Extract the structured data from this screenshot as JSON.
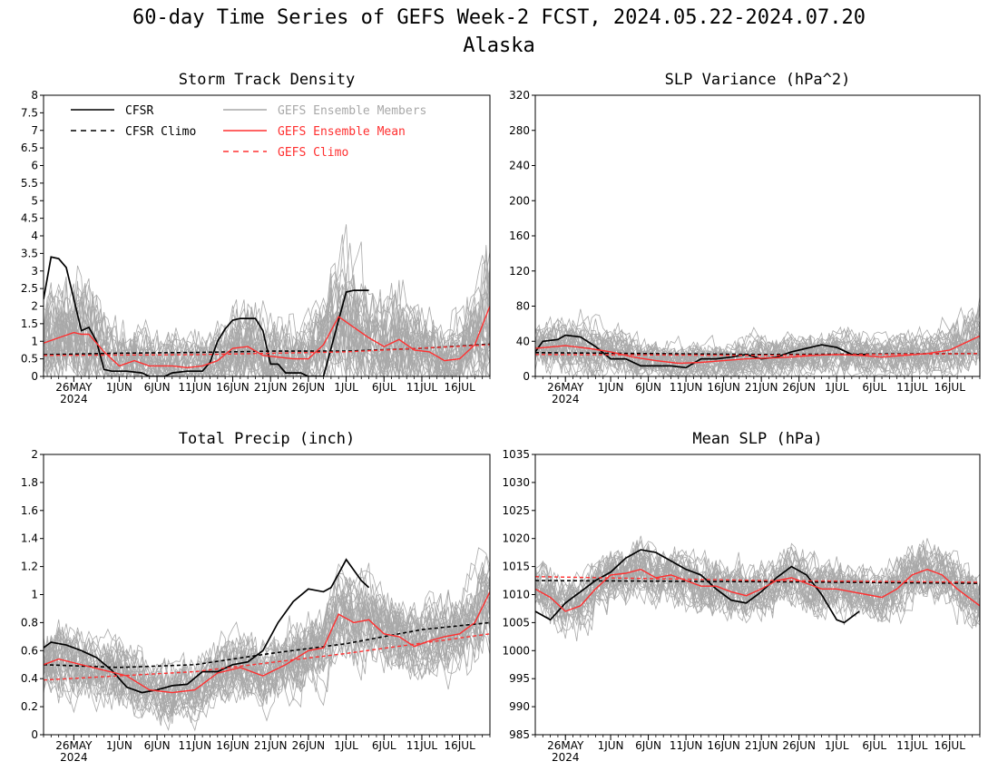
{
  "title": {
    "line1": "60-day Time Series of GEFS Week-2 FCST, 2024.05.22-2024.07.20",
    "line2": "Alaska"
  },
  "colors": {
    "cfsr": "#000000",
    "members": "#a9a9a9",
    "ens_mean": "#ff3030",
    "gefs_climo": "#ff3030"
  },
  "legend": {
    "cfsr": "CFSR",
    "cfsr_climo": "CFSR Climo",
    "members": "GEFS Ensemble Members",
    "ens_mean": "GEFS Ensemble Mean",
    "gefs_climo": "GEFS Climo"
  },
  "x_axis": {
    "start": "2024-05-22",
    "end": "2024-07-20",
    "tick_labels": [
      "26MAY",
      "1JUN",
      "6JUN",
      "11JUN",
      "16JUN",
      "21JUN",
      "26JUN",
      "1JUL",
      "6JUL",
      "11JUL",
      "16JUL"
    ],
    "tick_dates": [
      "2024-05-26",
      "2024-06-01",
      "2024-06-06",
      "2024-06-11",
      "2024-06-16",
      "2024-06-21",
      "2024-06-26",
      "2024-07-01",
      "2024-07-06",
      "2024-07-11",
      "2024-07-16"
    ],
    "year_label": "2024"
  },
  "chart_data": [
    {
      "type": "line",
      "title": "Storm Track Density",
      "ylim": [
        0,
        8
      ],
      "yticks": [
        "0",
        "0.5",
        "1",
        "1.5",
        "2",
        "2.5",
        "3",
        "3.5",
        "4",
        "4.5",
        "5",
        "5.5",
        "6",
        "6.5",
        "7",
        "7.5",
        "8"
      ],
      "ytick_values": [
        0,
        0.5,
        1,
        1.5,
        2,
        2.5,
        3,
        3.5,
        4,
        4.5,
        5,
        5.5,
        6,
        6.5,
        7,
        7.5,
        8
      ],
      "legend_shown": true,
      "series": [
        {
          "name": "CFSR",
          "x": [
            "2024-05-22",
            "2024-05-23",
            "2024-05-24",
            "2024-05-25",
            "2024-05-26",
            "2024-05-27",
            "2024-05-28",
            "2024-05-29",
            "2024-05-30",
            "2024-05-31",
            "2024-06-01",
            "2024-06-02",
            "2024-06-04",
            "2024-06-05",
            "2024-06-06",
            "2024-06-07",
            "2024-06-08",
            "2024-06-10",
            "2024-06-12",
            "2024-06-13",
            "2024-06-14",
            "2024-06-15",
            "2024-06-16",
            "2024-06-17",
            "2024-06-18",
            "2024-06-19",
            "2024-06-20",
            "2024-06-21",
            "2024-06-22",
            "2024-06-23",
            "2024-06-24",
            "2024-06-25",
            "2024-06-26",
            "2024-06-27",
            "2024-06-28",
            "2024-06-29",
            "2024-06-30",
            "2024-07-01",
            "2024-07-02",
            "2024-07-03",
            "2024-07-04"
          ],
          "values": [
            2.2,
            3.4,
            3.35,
            3.1,
            2.2,
            1.3,
            1.4,
            1.0,
            0.2,
            0.15,
            0.15,
            0.15,
            0.1,
            0.0,
            0.0,
            0.0,
            0.1,
            0.15,
            0.15,
            0.4,
            1.0,
            1.35,
            1.6,
            1.65,
            1.65,
            1.65,
            1.3,
            0.35,
            0.35,
            0.1,
            0.1,
            0.1,
            0.0,
            0.0,
            0.0,
            0.8,
            1.6,
            2.4,
            2.45,
            2.45,
            2.45
          ]
        },
        {
          "name": "CFSR Climo",
          "x": [
            "2024-05-22",
            "2024-06-01",
            "2024-06-11",
            "2024-06-21",
            "2024-07-01",
            "2024-07-11",
            "2024-07-20"
          ],
          "values": [
            0.62,
            0.66,
            0.68,
            0.72,
            0.72,
            0.8,
            0.92
          ]
        },
        {
          "name": "GEFS Ensemble Mean",
          "x": [
            "2024-05-22",
            "2024-05-24",
            "2024-05-26",
            "2024-05-27",
            "2024-05-28",
            "2024-05-30",
            "2024-06-01",
            "2024-06-03",
            "2024-06-05",
            "2024-06-08",
            "2024-06-10",
            "2024-06-12",
            "2024-06-14",
            "2024-06-16",
            "2024-06-18",
            "2024-06-20",
            "2024-06-22",
            "2024-06-24",
            "2024-06-26",
            "2024-06-28",
            "2024-06-30",
            "2024-07-02",
            "2024-07-04",
            "2024-07-06",
            "2024-07-08",
            "2024-07-10",
            "2024-07-12",
            "2024-07-14",
            "2024-07-16",
            "2024-07-18",
            "2024-07-20"
          ],
          "values": [
            0.95,
            1.1,
            1.25,
            1.2,
            1.2,
            0.7,
            0.3,
            0.45,
            0.3,
            0.3,
            0.25,
            0.3,
            0.45,
            0.8,
            0.85,
            0.6,
            0.55,
            0.5,
            0.5,
            0.9,
            1.7,
            1.4,
            1.1,
            0.85,
            1.05,
            0.75,
            0.7,
            0.45,
            0.5,
            0.9,
            2.0
          ]
        },
        {
          "name": "GEFS Climo",
          "x": [
            "2024-05-22",
            "2024-06-11",
            "2024-07-01",
            "2024-07-20"
          ],
          "values": [
            0.6,
            0.62,
            0.7,
            0.9
          ]
        }
      ]
    },
    {
      "type": "line",
      "title": "SLP Variance (hPa^2)",
      "ylim": [
        0,
        320
      ],
      "yticks": [
        "0",
        "40",
        "80",
        "120",
        "160",
        "200",
        "240",
        "280",
        "320"
      ],
      "ytick_values": [
        0,
        40,
        80,
        120,
        160,
        200,
        240,
        280,
        320
      ],
      "legend_shown": false,
      "series": [
        {
          "name": "CFSR",
          "x": [
            "2024-05-22",
            "2024-05-23",
            "2024-05-25",
            "2024-05-26",
            "2024-05-28",
            "2024-05-30",
            "2024-06-01",
            "2024-06-03",
            "2024-06-05",
            "2024-06-07",
            "2024-06-09",
            "2024-06-11",
            "2024-06-13",
            "2024-06-15",
            "2024-06-17",
            "2024-06-19",
            "2024-06-21",
            "2024-06-23",
            "2024-06-25",
            "2024-06-27",
            "2024-06-29",
            "2024-07-01",
            "2024-07-03",
            "2024-07-05"
          ],
          "values": [
            28,
            40,
            42,
            47,
            45,
            34,
            20,
            20,
            12,
            12,
            12,
            10,
            20,
            20,
            22,
            25,
            20,
            22,
            28,
            32,
            36,
            33,
            25,
            25
          ]
        },
        {
          "name": "CFSR Climo",
          "x": [
            "2024-05-22",
            "2024-06-21",
            "2024-07-20"
          ],
          "values": [
            27,
            25,
            26
          ]
        },
        {
          "name": "GEFS Ensemble Mean",
          "x": [
            "2024-05-22",
            "2024-05-26",
            "2024-05-29",
            "2024-06-01",
            "2024-06-04",
            "2024-06-07",
            "2024-06-10",
            "2024-06-13",
            "2024-06-16",
            "2024-06-19",
            "2024-06-22",
            "2024-06-25",
            "2024-06-28",
            "2024-07-01",
            "2024-07-04",
            "2024-07-07",
            "2024-07-10",
            "2024-07-13",
            "2024-07-16",
            "2024-07-20"
          ],
          "values": [
            32,
            35,
            32,
            28,
            22,
            18,
            15,
            16,
            18,
            20,
            21,
            22,
            24,
            25,
            24,
            22,
            24,
            26,
            30,
            46
          ]
        },
        {
          "name": "GEFS Climo",
          "x": [
            "2024-05-22",
            "2024-06-21",
            "2024-07-20"
          ],
          "values": [
            25,
            24,
            26
          ]
        }
      ]
    },
    {
      "type": "line",
      "title": "Total Precip (inch)",
      "ylim": [
        0,
        2
      ],
      "yticks": [
        "0",
        "0.2",
        "0.4",
        "0.6",
        "0.8",
        "1",
        "1.2",
        "1.4",
        "1.6",
        "1.8",
        "2"
      ],
      "ytick_values": [
        0,
        0.2,
        0.4,
        0.6,
        0.8,
        1,
        1.2,
        1.4,
        1.6,
        1.8,
        2
      ],
      "legend_shown": false,
      "series": [
        {
          "name": "CFSR",
          "x": [
            "2024-05-22",
            "2024-05-23",
            "2024-05-25",
            "2024-05-27",
            "2024-05-29",
            "2024-05-31",
            "2024-06-02",
            "2024-06-04",
            "2024-06-06",
            "2024-06-08",
            "2024-06-10",
            "2024-06-12",
            "2024-06-14",
            "2024-06-16",
            "2024-06-18",
            "2024-06-20",
            "2024-06-22",
            "2024-06-24",
            "2024-06-26",
            "2024-06-28",
            "2024-06-29",
            "2024-07-01",
            "2024-07-03",
            "2024-07-04"
          ],
          "values": [
            0.62,
            0.66,
            0.64,
            0.6,
            0.55,
            0.46,
            0.34,
            0.3,
            0.32,
            0.35,
            0.36,
            0.45,
            0.45,
            0.5,
            0.52,
            0.6,
            0.8,
            0.95,
            1.04,
            1.02,
            1.05,
            1.25,
            1.1,
            1.05
          ]
        },
        {
          "name": "CFSR Climo",
          "x": [
            "2024-05-22",
            "2024-06-01",
            "2024-06-11",
            "2024-06-21",
            "2024-07-01",
            "2024-07-11",
            "2024-07-20"
          ],
          "values": [
            0.5,
            0.48,
            0.5,
            0.58,
            0.65,
            0.75,
            0.8
          ]
        },
        {
          "name": "GEFS Ensemble Mean",
          "x": [
            "2024-05-22",
            "2024-05-24",
            "2024-05-27",
            "2024-05-30",
            "2024-06-02",
            "2024-06-05",
            "2024-06-08",
            "2024-06-11",
            "2024-06-14",
            "2024-06-17",
            "2024-06-20",
            "2024-06-23",
            "2024-06-26",
            "2024-06-28",
            "2024-06-30",
            "2024-07-02",
            "2024-07-04",
            "2024-07-06",
            "2024-07-08",
            "2024-07-10",
            "2024-07-12",
            "2024-07-14",
            "2024-07-16",
            "2024-07-18",
            "2024-07-20"
          ],
          "values": [
            0.5,
            0.54,
            0.5,
            0.46,
            0.42,
            0.32,
            0.3,
            0.32,
            0.44,
            0.48,
            0.42,
            0.5,
            0.6,
            0.62,
            0.86,
            0.8,
            0.82,
            0.72,
            0.7,
            0.63,
            0.67,
            0.7,
            0.72,
            0.8,
            1.02
          ]
        },
        {
          "name": "GEFS Climo",
          "x": [
            "2024-05-22",
            "2024-06-11",
            "2024-07-01",
            "2024-07-20"
          ],
          "values": [
            0.39,
            0.45,
            0.58,
            0.72
          ]
        }
      ]
    },
    {
      "type": "line",
      "title": "Mean SLP (hPa)",
      "ylim": [
        985,
        1035
      ],
      "yticks": [
        "985",
        "990",
        "995",
        "1000",
        "1005",
        "1010",
        "1015",
        "1020",
        "1025",
        "1030",
        "1035"
      ],
      "ytick_values": [
        985,
        990,
        995,
        1000,
        1005,
        1010,
        1015,
        1020,
        1025,
        1030,
        1035
      ],
      "legend_shown": false,
      "series": [
        {
          "name": "CFSR",
          "x": [
            "2024-05-22",
            "2024-05-24",
            "2024-05-26",
            "2024-05-28",
            "2024-05-30",
            "2024-06-01",
            "2024-06-03",
            "2024-06-05",
            "2024-06-07",
            "2024-06-09",
            "2024-06-11",
            "2024-06-13",
            "2024-06-15",
            "2024-06-17",
            "2024-06-19",
            "2024-06-21",
            "2024-06-23",
            "2024-06-25",
            "2024-06-27",
            "2024-06-29",
            "2024-07-01",
            "2024-07-02",
            "2024-07-04"
          ],
          "values": [
            1007,
            1005.5,
            1008.5,
            1010.5,
            1012.5,
            1014,
            1016.5,
            1018,
            1017.5,
            1016,
            1014.5,
            1013.5,
            1011,
            1009,
            1008.5,
            1010.5,
            1013,
            1015,
            1013.5,
            1010,
            1005.5,
            1005,
            1007
          ]
        },
        {
          "name": "CFSR Climo",
          "x": [
            "2024-05-22",
            "2024-06-21",
            "2024-07-20"
          ],
          "values": [
            1012.5,
            1012.3,
            1012
          ]
        },
        {
          "name": "GEFS Ensemble Mean",
          "x": [
            "2024-05-22",
            "2024-05-24",
            "2024-05-26",
            "2024-05-28",
            "2024-05-30",
            "2024-06-01",
            "2024-06-03",
            "2024-06-05",
            "2024-06-07",
            "2024-06-09",
            "2024-06-11",
            "2024-06-13",
            "2024-06-15",
            "2024-06-17",
            "2024-06-19",
            "2024-06-21",
            "2024-06-23",
            "2024-06-25",
            "2024-06-27",
            "2024-06-29",
            "2024-07-01",
            "2024-07-03",
            "2024-07-05",
            "2024-07-07",
            "2024-07-09",
            "2024-07-11",
            "2024-07-13",
            "2024-07-15",
            "2024-07-17",
            "2024-07-20"
          ],
          "values": [
            1011,
            1009.5,
            1007,
            1008,
            1011,
            1013.5,
            1013.8,
            1014.5,
            1013,
            1013.5,
            1012.5,
            1011.5,
            1011.5,
            1010.5,
            1009.8,
            1011,
            1012.5,
            1013,
            1012,
            1011,
            1011,
            1010.5,
            1010,
            1009.5,
            1011,
            1013.5,
            1014.5,
            1013.5,
            1011,
            1008
          ]
        },
        {
          "name": "GEFS Climo",
          "x": [
            "2024-05-22",
            "2024-06-21",
            "2024-07-20"
          ],
          "values": [
            1013.2,
            1012.5,
            1012.2
          ]
        }
      ]
    }
  ]
}
